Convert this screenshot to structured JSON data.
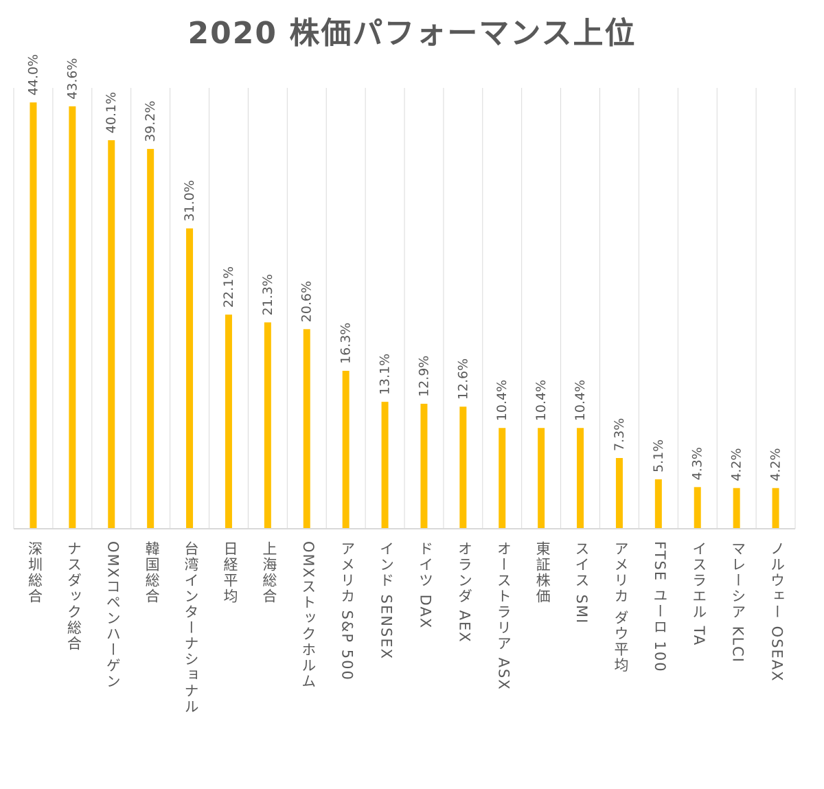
{
  "chart_data": {
    "type": "bar",
    "title": "2020 株価パフォーマンス上位",
    "xlabel": "",
    "ylabel": "",
    "ylim": [
      0,
      45.5
    ],
    "grid": "vertical",
    "legend": "none",
    "bar_color": "#FFC000",
    "categories": [
      "深圳総合",
      "ナスダック総合",
      "OMXコペンハーゲン",
      "韓国総合",
      "台湾インターナショナル",
      "日経平均",
      "上海総合",
      "OMXストックホルム",
      "アメリカ S&P 500",
      "インド SENSEX",
      "ドイツ DAX",
      "オランダ AEX",
      "オーストラリア ASX",
      "東証株価",
      "スイス SMI",
      "アメリカ ダウ平均",
      "FTSE ユーロ 100",
      "イスラエル TA",
      "マレーシア KLCI",
      "ノルウェー OSEAX"
    ],
    "values": [
      44.0,
      43.6,
      40.1,
      39.2,
      31.0,
      22.1,
      21.3,
      20.6,
      16.3,
      13.1,
      12.9,
      12.6,
      10.4,
      10.4,
      10.4,
      7.3,
      5.1,
      4.3,
      4.2,
      4.2
    ],
    "data_labels": [
      "44.0%",
      "43.6%",
      "40.1%",
      "39.2%",
      "31.0%",
      "22.1%",
      "21.3%",
      "20.6%",
      "16.3%",
      "13.1%",
      "12.9%",
      "12.6%",
      "10.4%",
      "10.4%",
      "10.4%",
      "7.3%",
      "5.1%",
      "4.3%",
      "4.2%",
      "4.2%"
    ]
  }
}
